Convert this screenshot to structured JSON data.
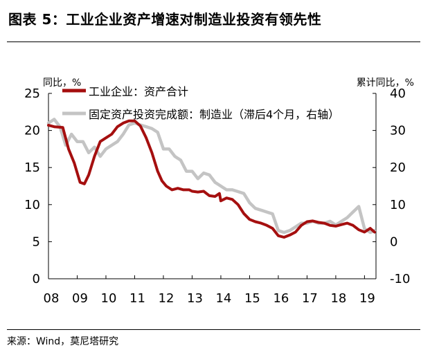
{
  "figure": {
    "title": "图表 5：工业企业资产增速对制造业投资有领先性",
    "source": "来源：Wind，莫尼塔研究"
  },
  "chart_data": {
    "type": "line",
    "left_axis_label": "同比，%",
    "right_axis_label": "累计同比，%",
    "left_ylim": [
      0,
      25
    ],
    "left_ticks": [
      "0",
      "5",
      "10",
      "15",
      "20",
      "25"
    ],
    "right_ylim": [
      -10,
      40
    ],
    "right_ticks": [
      "-10",
      "0",
      "10",
      "20",
      "30",
      "40"
    ],
    "xlim": [
      2008.0,
      2019.4
    ],
    "x_ticks": [
      "08",
      "09",
      "10",
      "11",
      "12",
      "13",
      "14",
      "15",
      "16",
      "17",
      "18",
      "19"
    ],
    "grid": false,
    "legend_position": "top",
    "series": [
      {
        "name": "工业企业：资产合计",
        "axis": "left",
        "color": "#a50f0f",
        "x": [
          2008.0,
          2008.2,
          2008.5,
          2008.7,
          2008.9,
          2009.1,
          2009.25,
          2009.4,
          2009.6,
          2009.8,
          2010.0,
          2010.2,
          2010.4,
          2010.6,
          2010.8,
          2011.0,
          2011.2,
          2011.4,
          2011.6,
          2011.8,
          2011.95,
          2012.1,
          2012.3,
          2012.5,
          2012.7,
          2012.9,
          2013.0,
          2013.2,
          2013.4,
          2013.6,
          2013.8,
          2013.95,
          2014.0,
          2014.2,
          2014.4,
          2014.6,
          2014.8,
          2015.0,
          2015.2,
          2015.4,
          2015.6,
          2015.8,
          2016.0,
          2016.2,
          2016.4,
          2016.6,
          2016.8,
          2017.0,
          2017.2,
          2017.4,
          2017.6,
          2017.8,
          2018.0,
          2018.2,
          2018.4,
          2018.6,
          2018.8,
          2019.0,
          2019.2,
          2019.35
        ],
        "values": [
          20.7,
          20.5,
          20.4,
          17.5,
          15.6,
          13.0,
          12.8,
          14.0,
          16.5,
          18.5,
          19.0,
          19.5,
          20.5,
          21.0,
          21.3,
          21.3,
          20.6,
          19.0,
          17.0,
          14.5,
          13.2,
          12.5,
          12.0,
          12.2,
          12.0,
          12.0,
          11.8,
          11.7,
          11.8,
          11.2,
          11.1,
          11.5,
          10.5,
          10.9,
          10.7,
          10.0,
          8.8,
          8.0,
          7.7,
          7.5,
          7.2,
          6.8,
          5.8,
          5.6,
          5.9,
          6.3,
          7.2,
          7.7,
          7.8,
          7.6,
          7.5,
          7.2,
          7.1,
          7.3,
          7.5,
          7.2,
          6.6,
          6.3,
          6.8,
          6.3
        ]
      },
      {
        "name": "固定资产投资完成额：制造业（滞后4个月，右轴）",
        "axis": "right",
        "color": "#c4c4c4",
        "x": [
          2008.0,
          2008.2,
          2008.4,
          2008.6,
          2008.8,
          2009.0,
          2009.2,
          2009.4,
          2009.6,
          2009.8,
          2010.0,
          2010.2,
          2010.4,
          2010.6,
          2010.8,
          2011.0,
          2011.2,
          2011.4,
          2011.6,
          2011.8,
          2012.0,
          2012.2,
          2012.4,
          2012.6,
          2012.8,
          2013.0,
          2013.2,
          2013.4,
          2013.6,
          2013.8,
          2014.0,
          2014.2,
          2014.4,
          2014.6,
          2014.8,
          2015.0,
          2015.2,
          2015.4,
          2015.6,
          2015.8,
          2016.0,
          2016.2,
          2016.4,
          2016.6,
          2016.8,
          2017.0,
          2017.2,
          2017.4,
          2017.6,
          2017.8,
          2018.0,
          2018.2,
          2018.4,
          2018.6,
          2018.8,
          2019.0,
          2019.2,
          2019.35
        ],
        "values": [
          32.0,
          33.0,
          31.0,
          26.0,
          29.0,
          27.0,
          27.0,
          24.0,
          25.5,
          23.0,
          25.0,
          26.0,
          27.0,
          29.0,
          31.5,
          32.0,
          31.5,
          31.0,
          30.5,
          29.5,
          25.0,
          25.0,
          23.0,
          22.0,
          19.0,
          19.0,
          17.0,
          18.5,
          18.0,
          16.0,
          15.0,
          14.0,
          14.0,
          13.5,
          13.0,
          10.5,
          9.0,
          8.5,
          8.0,
          7.5,
          3.0,
          2.5,
          3.0,
          4.0,
          5.0,
          5.0,
          5.5,
          5.0,
          5.0,
          5.5,
          4.5,
          5.5,
          6.5,
          8.0,
          9.5,
          3.5,
          2.5,
          3.0
        ]
      }
    ]
  }
}
